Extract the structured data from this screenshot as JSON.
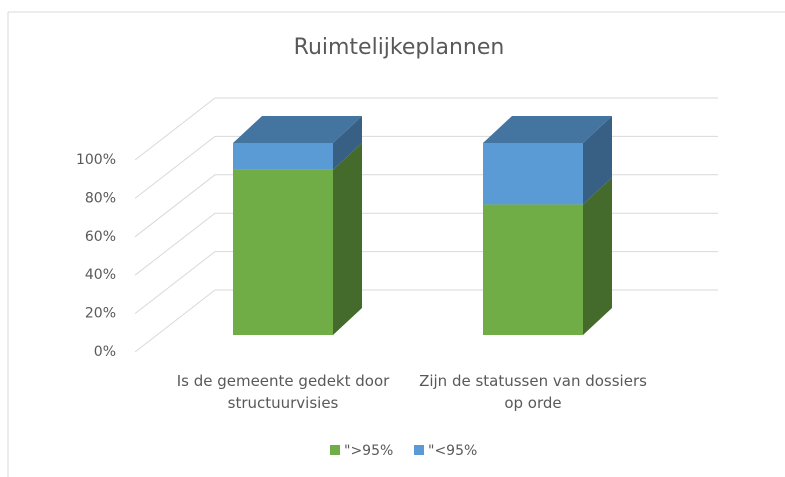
{
  "chart_data": {
    "type": "bar3d_stacked",
    "title": "Ruimtelijkeplannen",
    "categories": [
      "Is de gemeente gedekt door structuurvisies",
      "Zijn de statussen van dossiers op orde"
    ],
    "series": [
      {
        "name": "\">95%",
        "color": "#70ad47",
        "values": [
          86,
          68
        ]
      },
      {
        "name": "\"<95%",
        "color": "#5b9bd5",
        "values": [
          14,
          32
        ]
      }
    ],
    "ylim": [
      0,
      100
    ],
    "yticks": [
      {
        "value": 0,
        "label": "0%"
      },
      {
        "value": 20,
        "label": "20%"
      },
      {
        "value": 40,
        "label": "40%"
      },
      {
        "value": 60,
        "label": "60%"
      },
      {
        "value": 80,
        "label": "80%"
      },
      {
        "value": 100,
        "label": "100%"
      }
    ],
    "grid": true,
    "legend": "bottom"
  }
}
